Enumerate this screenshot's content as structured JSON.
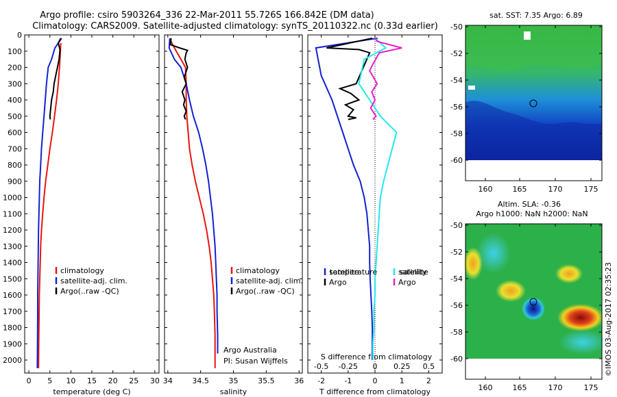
{
  "header": {
    "line1": "Argo profile: csiro 5903264_336 22-Mar-2011 55.726S 166.842E (DM data)",
    "line2": "Climatology: CARS2009. Satellite-adjusted climatology: synTS_20110322.nc (0.33d earlier)"
  },
  "colors": {
    "climatology": "#e8120e",
    "satellite": "#1020d0",
    "argo": "#000000",
    "sat_salinity": "#22e8ee",
    "argo_salinity": "#e81ec8"
  },
  "chart_data": [
    {
      "type": "line",
      "id": "temperature",
      "xlabel": "temperature (deg C)",
      "ylabel": "",
      "xlim": [
        -1,
        31
      ],
      "ylim": [
        2080,
        0
      ],
      "invert_y": true,
      "xticks": [
        0,
        5,
        10,
        15,
        20,
        25,
        30
      ],
      "yticks": [
        0,
        100,
        200,
        300,
        400,
        500,
        600,
        700,
        800,
        900,
        1000,
        1100,
        1200,
        1300,
        1400,
        1500,
        1600,
        1700,
        1800,
        1900,
        2000
      ],
      "legend": [
        "climatology",
        "satellite-adj. clim.",
        "Argo(..raw -QC)"
      ],
      "series": [
        {
          "name": "climatology",
          "color_key": "climatology",
          "x": [
            7.6,
            7.5,
            7.3,
            7.0,
            6.6,
            6.1,
            5.6,
            5.0,
            4.5,
            4.0,
            3.6,
            3.3,
            3.0,
            2.8,
            2.7,
            2.6,
            2.5,
            2.45,
            2.4,
            2.35,
            2.3
          ],
          "y": [
            50,
            100,
            200,
            300,
            400,
            500,
            600,
            700,
            800,
            900,
            1000,
            1100,
            1200,
            1300,
            1400,
            1500,
            1600,
            1700,
            1800,
            1900,
            2050
          ]
        },
        {
          "name": "satellite-adj. clim.",
          "color_key": "satellite",
          "x": [
            7.8,
            6.2,
            5.4,
            4.6,
            4.2,
            3.9,
            3.6,
            3.3,
            3.0,
            2.8,
            2.6,
            2.5,
            2.4,
            2.3,
            2.25,
            2.2,
            2.15,
            2.1,
            2.1,
            2.05,
            2.0
          ],
          "y": [
            20,
            80,
            150,
            200,
            300,
            400,
            500,
            600,
            700,
            800,
            900,
            1000,
            1100,
            1200,
            1300,
            1400,
            1500,
            1600,
            1700,
            1900,
            2050
          ]
        },
        {
          "name": "Argo(..raw -QC)",
          "color_key": "argo",
          "x": [
            7.6,
            7.0,
            7.4,
            7.2,
            6.8,
            6.4,
            6.0,
            5.8,
            5.4,
            5.2,
            5.0,
            5.1
          ],
          "y": [
            20,
            50,
            90,
            150,
            200,
            250,
            300,
            350,
            400,
            450,
            500,
            520
          ]
        }
      ]
    },
    {
      "type": "line",
      "id": "salinity",
      "xlabel": "salinity",
      "ylabel": "",
      "xlim": [
        33.95,
        36.05
      ],
      "ylim": [
        2080,
        0
      ],
      "invert_y": true,
      "xticks": [
        34,
        34.5,
        35,
        35.5,
        36
      ],
      "legend": [
        "climatology",
        "satellite-adj. clim.",
        "Argo(..raw -QC)"
      ],
      "annotations": [
        "Argo Australia",
        "PI: Susan Wijffels"
      ],
      "series": [
        {
          "name": "climatology",
          "color_key": "climatology",
          "x": [
            34.05,
            34.1,
            34.2,
            34.27,
            34.28,
            34.28,
            34.29,
            34.31,
            34.33,
            34.37,
            34.42,
            34.48,
            34.54,
            34.59,
            34.63,
            34.66,
            34.68,
            34.7,
            34.71,
            34.72,
            34.72
          ],
          "y": [
            40,
            80,
            150,
            200,
            300,
            400,
            500,
            600,
            700,
            800,
            900,
            1000,
            1100,
            1200,
            1300,
            1400,
            1500,
            1600,
            1700,
            1850,
            2050
          ]
        },
        {
          "name": "satellite-adj. clim.",
          "color_key": "satellite",
          "x": [
            34.03,
            34.02,
            34.1,
            34.2,
            34.28,
            34.33,
            34.39,
            34.47,
            34.53,
            34.58,
            34.62,
            34.65,
            34.68,
            34.7,
            34.72,
            34.73,
            34.74,
            34.75,
            34.75,
            34.76,
            34.76
          ],
          "y": [
            20,
            80,
            150,
            200,
            300,
            400,
            500,
            600,
            700,
            800,
            900,
            1000,
            1100,
            1200,
            1300,
            1400,
            1500,
            1600,
            1700,
            1850,
            1960
          ]
        },
        {
          "name": "Argo(..raw -QC)",
          "color_key": "argo",
          "x": [
            34.05,
            34.04,
            34.18,
            34.3,
            34.28,
            34.26,
            34.3,
            34.25,
            34.28,
            34.22,
            34.26,
            34.24,
            34.28,
            34.25,
            34.27
          ],
          "y": [
            20,
            60,
            80,
            95,
            110,
            150,
            200,
            260,
            300,
            350,
            400,
            430,
            470,
            500,
            520
          ]
        }
      ]
    },
    {
      "type": "line",
      "id": "difference",
      "xlabel": "T difference from climatology",
      "x2label": "S difference from climatology",
      "xlim": [
        -2.5,
        2.5
      ],
      "x2lim": [
        -0.625,
        0.625
      ],
      "ylim": [
        2080,
        0
      ],
      "invert_y": true,
      "xticks": [
        -2,
        -1,
        0,
        1,
        2
      ],
      "x2ticks": [
        -0.5,
        -0.25,
        0,
        0.25,
        0.5
      ],
      "legend_titles": [
        "temperature",
        "salinity"
      ],
      "legend": [
        "satellite",
        "Argo",
        "satellite",
        "Argo"
      ],
      "series": [
        {
          "name": "satellite",
          "color_key": "satellite",
          "axis": "T",
          "x": [
            0.1,
            -2.2,
            -2.0,
            -1.6,
            -1.2,
            -1.0,
            -0.8,
            -0.55,
            -0.4,
            -0.3,
            -0.25,
            -0.2,
            -0.2,
            -0.18,
            -0.15,
            -0.12,
            -0.1,
            -0.1,
            -0.1,
            -0.1
          ],
          "y": [
            20,
            80,
            250,
            400,
            600,
            700,
            800,
            900,
            1000,
            1100,
            1200,
            1300,
            1400,
            1500,
            1600,
            1700,
            1800,
            1900,
            1950,
            2000
          ]
        },
        {
          "name": "Argo",
          "color_key": "argo",
          "axis": "T",
          "x": [
            -0.1,
            -1.8,
            -0.6,
            -0.2,
            -0.7,
            -1.3,
            -0.9,
            -0.6,
            -1.1,
            -0.8,
            -0.9,
            -1.0,
            -0.7,
            -1.0
          ],
          "y": [
            20,
            80,
            90,
            110,
            300,
            330,
            360,
            400,
            430,
            460,
            480,
            500,
            510,
            520
          ]
        },
        {
          "name": "satellite",
          "color_key": "sat_salinity",
          "axis": "S",
          "x": [
            0.0,
            0.1,
            -0.1,
            -0.15,
            -0.05,
            0.05,
            0.2,
            0.12,
            0.08,
            0.05,
            0.03,
            0.02,
            0.01,
            0.0,
            0.0,
            -0.01,
            -0.01,
            -0.02,
            -0.02
          ],
          "y": [
            20,
            80,
            150,
            300,
            400,
            500,
            600,
            800,
            900,
            1000,
            1200,
            1300,
            1400,
            1500,
            1600,
            1700,
            1800,
            1900,
            2000
          ]
        },
        {
          "name": "Argo",
          "color_key": "argo_salinity",
          "axis": "S",
          "x": [
            0.0,
            0.02,
            0.25,
            0.04,
            -0.02,
            -0.05,
            0.02,
            -0.03,
            0.0,
            -0.04,
            0.01,
            -0.02
          ],
          "y": [
            20,
            40,
            80,
            110,
            180,
            220,
            300,
            350,
            400,
            450,
            500,
            520
          ]
        }
      ]
    }
  ],
  "maps": [
    {
      "id": "sst-map",
      "title": "sat. SST: 7.35 Argo: 6.89",
      "xticks": [
        "160",
        "165",
        "170",
        "175"
      ],
      "yticks": [
        "-50",
        "-52",
        "-54",
        "-56",
        "-58",
        "-60"
      ]
    },
    {
      "id": "sla-map",
      "title_line1": "Altim. SLA: -0.36",
      "title_line2": "Argo h1000: NaN h2000: NaN",
      "xticks": [
        "160",
        "165",
        "170",
        "175"
      ],
      "yticks": [
        "-50",
        "-52",
        "-54",
        "-56",
        "-58",
        "-60"
      ]
    }
  ],
  "credit": "©IMOS 03-Aug-2017 02:35:23"
}
